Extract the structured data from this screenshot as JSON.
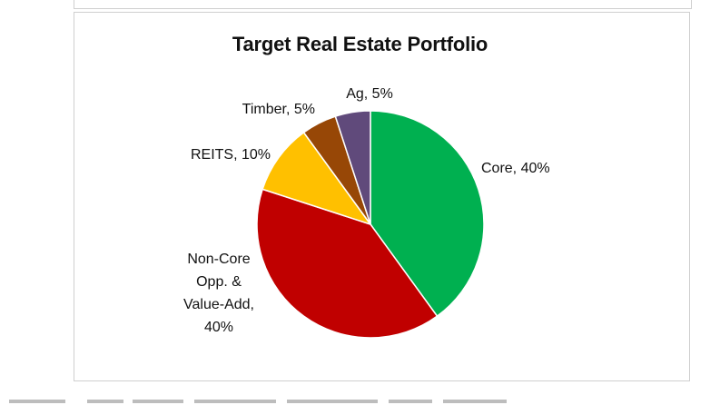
{
  "chart_data": {
    "type": "pie",
    "title": "Target Real Estate Portfolio",
    "slices": [
      {
        "category": "Core",
        "value": 40,
        "label_lines": [
          "Core, 40%"
        ],
        "color": "#00b050"
      },
      {
        "category": "Non-Core Opp. & Value-Add",
        "value": 40,
        "label_lines": [
          "Non-Core",
          "Opp. &",
          "Value-Add,",
          "40%"
        ],
        "color": "#c00000"
      },
      {
        "category": "REITS",
        "value": 10,
        "label_lines": [
          "REITS, 10%"
        ],
        "color": "#ffc000"
      },
      {
        "category": "Timber",
        "value": 5,
        "label_lines": [
          "Timber, 5%"
        ],
        "color": "#974706"
      },
      {
        "category": "Ag",
        "value": 5,
        "label_lines": [
          "Ag, 5%"
        ],
        "color": "#604a7b"
      }
    ],
    "legend": "none",
    "start_angle": "12 o'clock, clockwise"
  }
}
